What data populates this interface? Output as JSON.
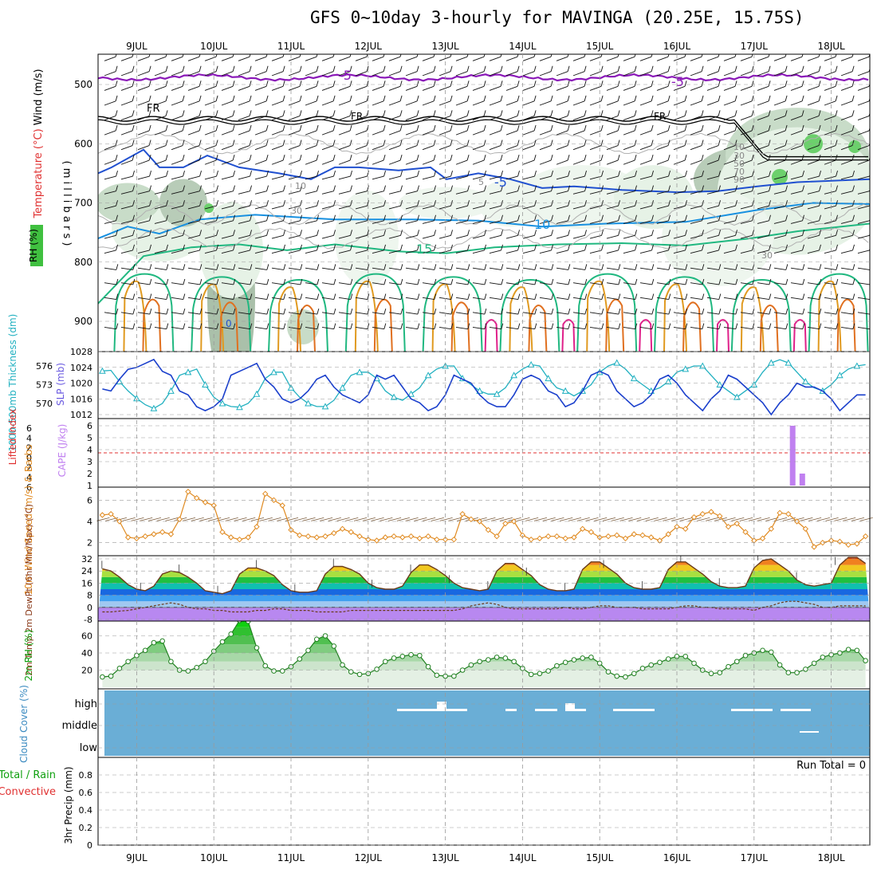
{
  "title": "GFS 0~10day 3-hourly for MAVINGA (20.25E, 15.75S)",
  "colors": {
    "wind_label": "#000000",
    "temp_label": "#e03030",
    "rh_label": "#20c020",
    "cyan": "#20b0c0",
    "slp": "#1a3fcc",
    "cape": "#c080f0",
    "li": "#e03030",
    "wind10": "#e08a20",
    "rh2m": "#10a010",
    "cloud": "#6aaed6",
    "purple_iso": "#8a18b8",
    "fr_iso": "#000000"
  },
  "dates": [
    "9JUL",
    "10JUL",
    "11JUL",
    "12JUL",
    "13JUL",
    "14JUL",
    "15JUL",
    "16JUL",
    "17JUL",
    "18JUL"
  ],
  "chart_data": [
    {
      "type": "line",
      "name": "upper-air",
      "ylabel_parts": [
        "Wind (m/s)",
        "Temperature (°C)",
        "RH (%)"
      ],
      "yaxis_label": "( m i l l i b a r s )",
      "y_ticks": [
        500,
        600,
        700,
        800,
        900
      ],
      "isotherm_labels": [
        "-5",
        "-5",
        "FR",
        "FR",
        "FR",
        "-5",
        "5",
        "10",
        "15",
        "10",
        "30",
        "30",
        "10",
        "30",
        "50",
        "70",
        "90",
        "0"
      ]
    },
    {
      "type": "line",
      "name": "thickness-slp",
      "ylabel_left": "1000-500mb Thickness (dm)",
      "ylabel_right": "SLP (mb)",
      "thickness_ticks": [
        570,
        573,
        576
      ],
      "slp_ticks": [
        1012,
        1016,
        1020,
        1024,
        1028
      ],
      "slp": [
        1018.5,
        1018,
        1021,
        1023.5,
        1024,
        1025,
        1026,
        1023,
        1022,
        1018,
        1017,
        1014,
        1013,
        1014,
        1016,
        1022,
        1023,
        1024,
        1025,
        1021,
        1019,
        1016,
        1015,
        1016,
        1018,
        1021,
        1022,
        1019,
        1017,
        1016,
        1015,
        1017,
        1022,
        1021,
        1022,
        1019,
        1016,
        1015,
        1013,
        1014,
        1017,
        1022,
        1021,
        1020,
        1017,
        1015,
        1014,
        1014,
        1017,
        1021,
        1022,
        1021,
        1018,
        1017,
        1014,
        1015,
        1018,
        1022,
        1023,
        1022,
        1018,
        1016,
        1014,
        1015,
        1017,
        1021,
        1022,
        1020,
        1017,
        1015,
        1013,
        1016,
        1018,
        1022,
        1021,
        1019,
        1017,
        1015,
        1012,
        1015,
        1017,
        1020,
        1019,
        1019,
        1018,
        1016,
        1013,
        1015,
        1017,
        1017
      ],
      "thickness": [
        575.2,
        575.3,
        573.5,
        572,
        570.8,
        569.8,
        569.2,
        570,
        572,
        574.5,
        575,
        575.5,
        573,
        571,
        570,
        569.5,
        569.4,
        570,
        571.5,
        574,
        575,
        575,
        572.5,
        571,
        570,
        569.5,
        569.5,
        570.5,
        572.5,
        574.5,
        575,
        575,
        574,
        572,
        571,
        570.5,
        571.5,
        572.5,
        574.5,
        575.5,
        576,
        576,
        574,
        573,
        572,
        571.5,
        571.5,
        572.5,
        574.5,
        575.5,
        576.2,
        576,
        574,
        572.5,
        572,
        571.2,
        572,
        573,
        575,
        576,
        576.5,
        575.5,
        574,
        573,
        572,
        572.5,
        573.5,
        575,
        575.5,
        576,
        576,
        574.5,
        573,
        572,
        571,
        572,
        573,
        575,
        576.5,
        577,
        576.5,
        575,
        573.5,
        572.5,
        572,
        573,
        574.5,
        575.5,
        576,
        576.2
      ]
    },
    {
      "type": "bar",
      "name": "cape-lifted-index",
      "ylabel_left": "Lifted Index",
      "ylabel_right": "CAPE (J/kg)",
      "li_ticks": [
        "6",
        "4",
        "2",
        "0",
        "2",
        "4",
        "6"
      ],
      "cape_ticks": [
        1,
        2,
        3,
        4,
        5,
        6
      ],
      "cape_bars": [
        {
          "day": 17.5,
          "value": 6
        },
        {
          "day": 17.625,
          "value": 2
        }
      ]
    },
    {
      "type": "line",
      "name": "10m-wind",
      "ylabel": "10m Wind Speed (m/s) & Barbs",
      "y_ticks": [
        2,
        4,
        6
      ],
      "ylim": [
        1,
        7
      ],
      "values": [
        4.6,
        4.7,
        4,
        2.5,
        2.4,
        2.6,
        2.8,
        3,
        2.8,
        4.2,
        6.8,
        6.2,
        5.8,
        5.5,
        3,
        2.5,
        2.3,
        2.5,
        3.5,
        6.6,
        6,
        5.5,
        3.2,
        2.7,
        2.6,
        2.5,
        2.6,
        2.9,
        3.3,
        3,
        2.6,
        2.3,
        2.2,
        2.5,
        2.6,
        2.5,
        2.6,
        2.4,
        2.6,
        2.3,
        2.3,
        2.3,
        4.7,
        4.2,
        4,
        3.2,
        2.6,
        3.8,
        4,
        2.7,
        2.3,
        2.4,
        2.6,
        2.6,
        2.4,
        2.5,
        3.3,
        3,
        2.5,
        2.6,
        2.7,
        2.4,
        2.8,
        2.7,
        2.5,
        2.2,
        2.8,
        3.5,
        3.3,
        4.4,
        4.7,
        4.9,
        4.5,
        3.5,
        3.8,
        3,
        2.2,
        2.4,
        3.3,
        4.8,
        4.7,
        4,
        3.3,
        1.6,
        2,
        2.2,
        2.1,
        1.8,
        1.9,
        2.6
      ]
    },
    {
      "type": "area",
      "name": "2m-temperature",
      "ylabel": "2m Temp 2m DewPt (6hr Min/Max) (°C)",
      "y_ticks": [
        -8,
        0,
        8,
        16,
        24,
        32
      ],
      "temp": [
        25.5,
        24,
        20,
        15,
        12,
        11,
        14,
        22,
        24,
        23,
        20,
        16,
        11,
        10,
        9,
        11,
        22,
        26,
        26,
        24,
        21,
        15,
        11,
        10,
        10,
        11,
        22,
        27,
        27,
        25,
        22,
        16,
        13,
        12,
        12,
        14,
        23,
        28,
        28,
        25,
        21,
        16,
        13,
        12,
        11,
        12,
        24,
        29,
        29,
        25,
        21,
        15,
        12,
        11,
        11,
        12,
        25,
        30,
        30,
        26,
        22,
        16,
        13,
        12,
        12,
        13,
        25,
        30,
        30,
        26,
        22,
        17,
        14,
        13,
        13,
        14,
        26,
        31,
        32,
        28,
        24,
        18,
        15,
        14,
        15,
        16,
        28,
        33,
        33,
        29
      ],
      "dewpoint": [
        -3,
        -3,
        -2.5,
        -2,
        -1,
        0,
        1,
        2,
        3,
        2,
        0,
        -1,
        -1,
        -2,
        -2,
        -3,
        -3,
        -3,
        -2,
        -2,
        -1,
        -1,
        -2,
        -2,
        -2,
        -3,
        -3,
        -3,
        -3,
        -2,
        -2,
        -2,
        -2,
        -2,
        -2,
        -2,
        -2,
        -2,
        -2,
        -2,
        -2,
        -2,
        -1,
        1,
        2,
        3,
        2,
        0,
        -1,
        -1,
        -1,
        -1,
        -1,
        -1,
        0,
        -1,
        -1,
        0,
        1,
        1,
        0,
        0,
        0,
        -1,
        -1,
        -1,
        -1,
        0,
        1,
        1,
        0,
        0,
        -1,
        -1,
        -1,
        -1,
        -2,
        0,
        1,
        3,
        4,
        4,
        3,
        2,
        0,
        0,
        1,
        1,
        1,
        1
      ]
    },
    {
      "type": "area",
      "name": "2m-rh",
      "ylabel": "2m RH (%)",
      "y_ticks": [
        20,
        40,
        60
      ],
      "values": [
        12,
        13,
        22,
        30,
        37,
        43,
        52,
        54,
        30,
        20,
        19,
        23,
        30,
        42,
        53,
        62,
        78,
        77,
        46,
        25,
        19,
        19,
        24,
        33,
        43,
        56,
        60,
        48,
        26,
        18,
        15,
        16,
        21,
        30,
        34,
        36,
        38,
        37,
        24,
        14,
        13,
        13,
        20,
        26,
        30,
        32,
        35,
        34,
        30,
        22,
        15,
        16,
        19,
        25,
        29,
        32,
        34,
        35,
        28,
        18,
        13,
        12,
        16,
        22,
        26,
        29,
        33,
        36,
        36,
        28,
        20,
        16,
        17,
        24,
        30,
        37,
        40,
        43,
        41,
        26,
        17,
        17,
        21,
        28,
        35,
        38,
        40,
        44,
        43,
        31
      ],
      "value_note": "last two values are estimated"
    },
    {
      "type": "bar",
      "name": "cloud-cover",
      "ylabel": "Cloud Cover (%)",
      "levels": [
        "high",
        "middle",
        "low"
      ]
    },
    {
      "type": "bar",
      "name": "precip",
      "ylabel_left": "Total / Rain",
      "ylabel_left2": "Convective",
      "ylabel": "3hr Precip (mm)",
      "y_ticks": [
        0,
        0.2,
        0.4,
        0.6,
        0.8
      ],
      "ylim": [
        0,
        1
      ],
      "run_total_label": "Run Total = 0",
      "values": []
    }
  ]
}
